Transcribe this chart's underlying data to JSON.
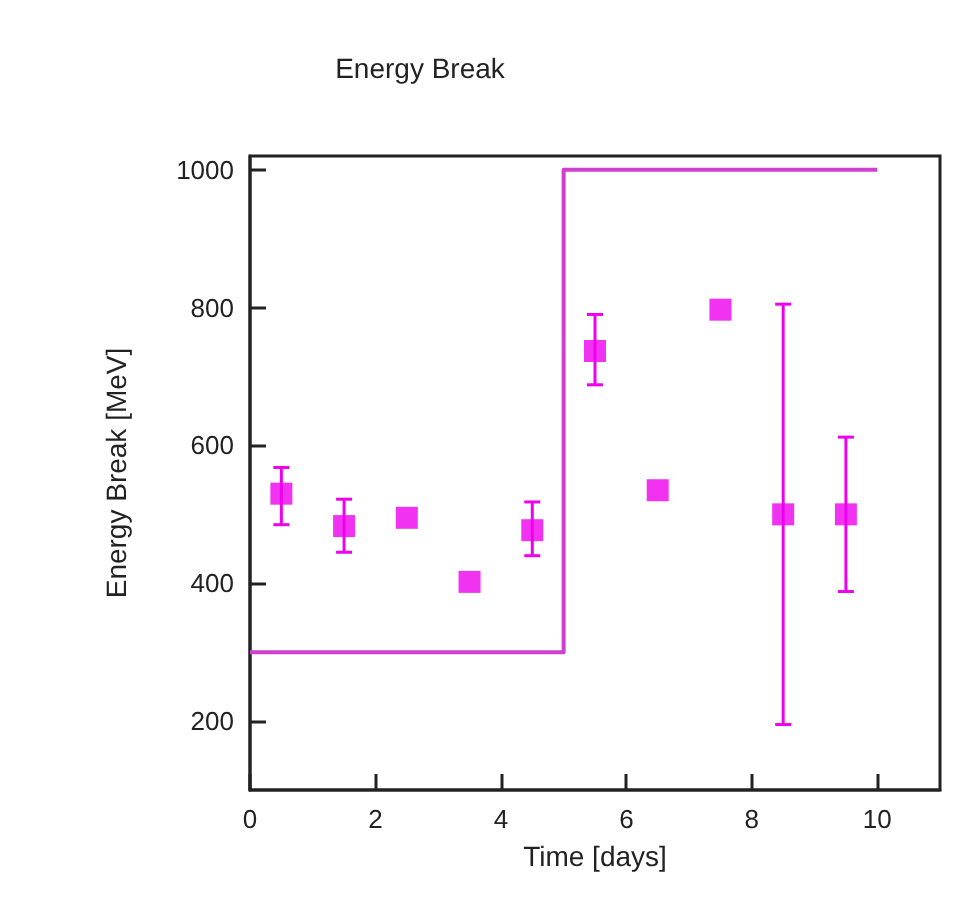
{
  "chart_data": {
    "type": "scatter",
    "title": "Energy Break",
    "xlabel": "Time [days]",
    "ylabel": "Energy Break [MeV]",
    "xlim": [
      0,
      11
    ],
    "xticks": [
      0,
      2,
      4,
      6,
      8,
      10
    ],
    "ylim": [
      100,
      1020
    ],
    "yticks": [
      200,
      400,
      600,
      800,
      1000
    ],
    "grid": false,
    "series": [
      {
        "marker": "square",
        "color": "#ee00ee",
        "x": [
          0.5,
          1.5,
          2.5,
          3.5,
          4.5,
          5.5,
          6.5,
          7.5,
          8.5,
          9.5
        ],
        "values": [
          530,
          483,
          495,
          402,
          477,
          737,
          535,
          797,
          500,
          500
        ],
        "errors": [
          [
            485,
            568
          ],
          [
            445,
            522
          ],
          null,
          null,
          [
            440,
            518
          ],
          [
            688,
            790
          ],
          null,
          null,
          [
            195,
            805
          ],
          [
            388,
            612
          ]
        ]
      },
      {
        "type": "step",
        "marker": "none",
        "color": "#d040d0",
        "x": [
          0,
          5,
          10
        ],
        "values": [
          300,
          1000,
          1000
        ]
      }
    ]
  }
}
